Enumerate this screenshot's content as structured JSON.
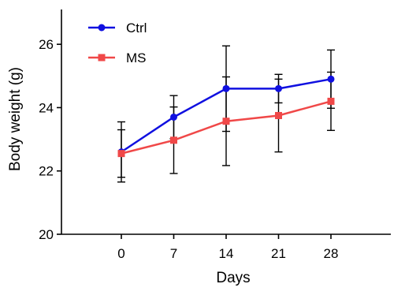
{
  "chart_data": {
    "type": "line",
    "xlabel": "Days",
    "ylabel": "Body weight (g)",
    "x": [
      0,
      7,
      14,
      21,
      28
    ],
    "x_tick_labels": [
      "0",
      "7",
      "14",
      "21",
      "28"
    ],
    "xlim": [
      -8,
      36
    ],
    "ylim": [
      20,
      27.1
    ],
    "y_ticks": [
      20,
      22,
      24,
      26
    ],
    "y_tick_labels": [
      "20",
      "22",
      "24",
      "26"
    ],
    "grid": false,
    "legend_position": "top-left",
    "series": [
      {
        "name": "Ctrl",
        "color": "#1010e0",
        "marker": "circle",
        "values": [
          22.6,
          23.7,
          24.6,
          24.6,
          24.9
        ],
        "error": [
          0.95,
          0.68,
          1.35,
          0.45,
          0.92
        ]
      },
      {
        "name": "MS",
        "color": "#f04848",
        "marker": "square",
        "values": [
          22.55,
          22.97,
          23.57,
          23.75,
          24.2
        ],
        "error": [
          0.75,
          1.05,
          1.4,
          1.15,
          0.92
        ]
      }
    ]
  }
}
